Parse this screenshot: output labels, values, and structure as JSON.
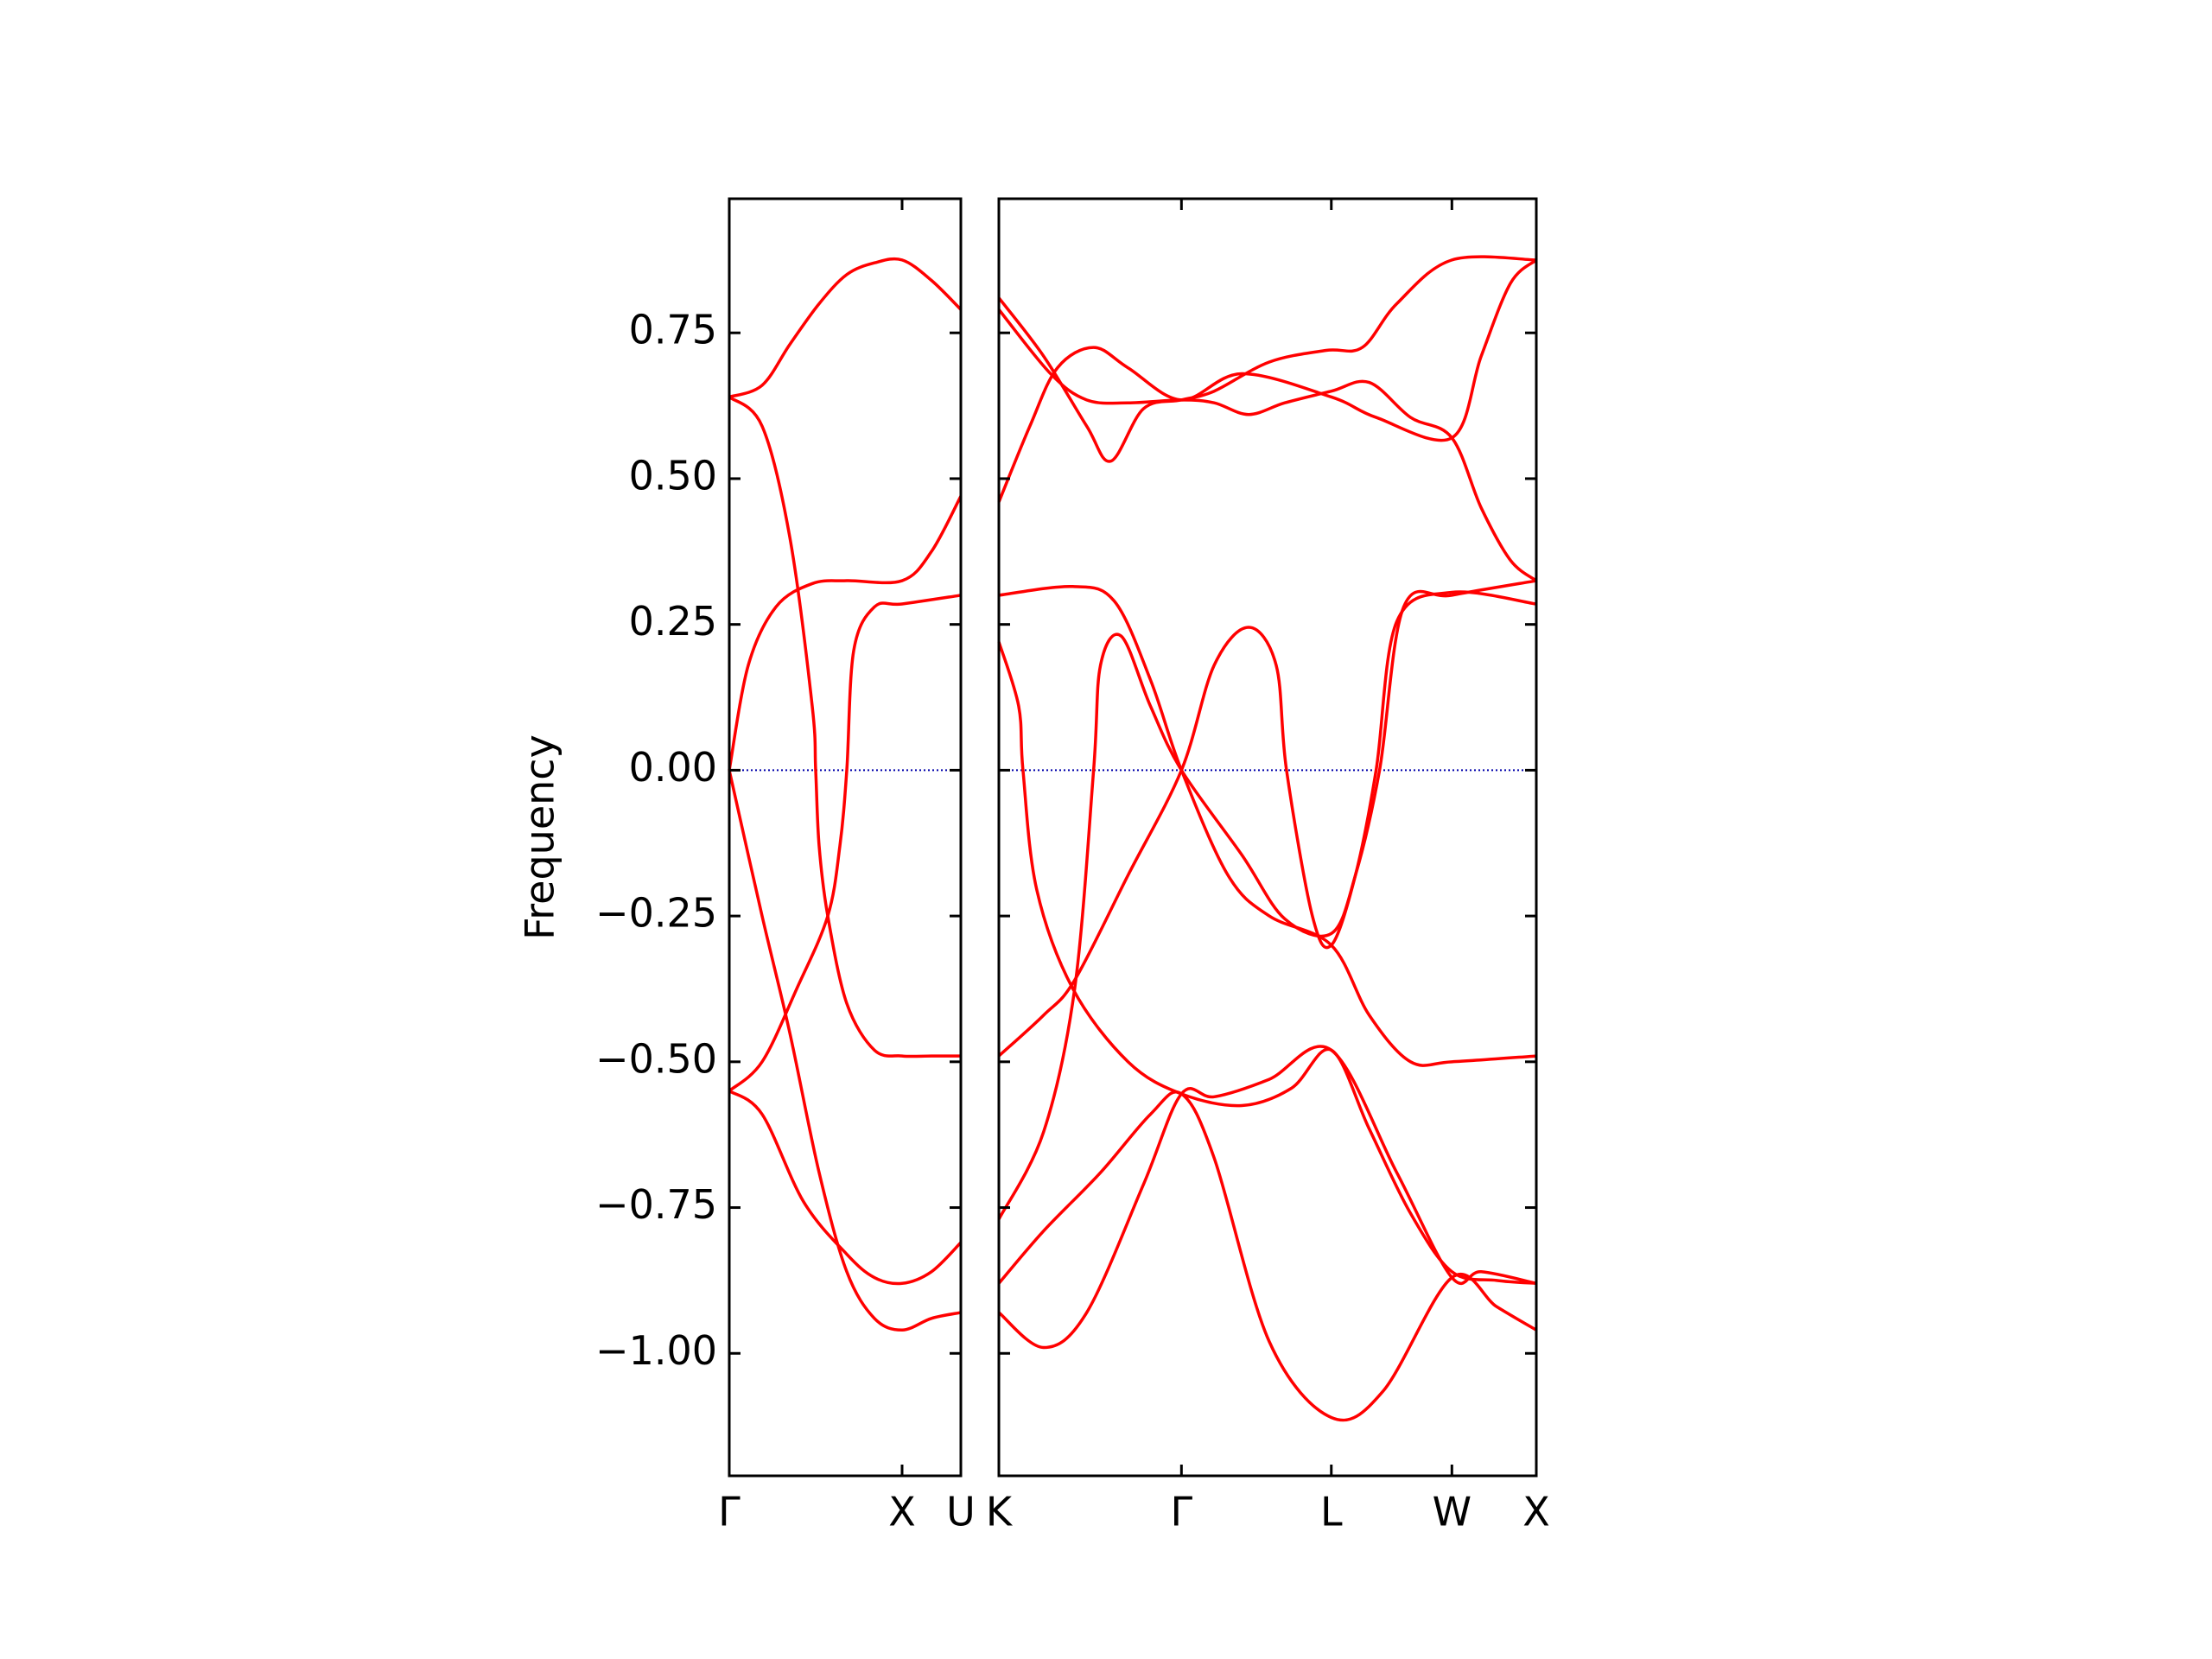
{
  "chart_data": [
    {
      "type": "line",
      "ylabel": "Frequency",
      "xlim": [
        0,
        1.34
      ],
      "ylim": [
        -1.21,
        0.98
      ],
      "xticks": [
        {
          "value": 0,
          "label": "Γ"
        },
        {
          "value": 1,
          "label": "X"
        },
        {
          "value": 1.34,
          "label": "U"
        }
      ],
      "yticks": [
        {
          "value": -1,
          "label": "−1.00"
        },
        {
          "value": -0.75,
          "label": "−0.75"
        },
        {
          "value": -0.5,
          "label": "−0.50"
        },
        {
          "value": -0.25,
          "label": "−0.25"
        },
        {
          "value": 0,
          "label": "0.00"
        },
        0.25,
        {
          "value": 0.5,
          "label": "0.50"
        },
        0.75
      ],
      "ytick_labels": true,
      "reference_line": {
        "value": 0,
        "color": "#0000aa"
      },
      "series": [
        {
          "color": "#ff0000",
          "x": [
            0,
            0.19,
            0.35,
            0.52,
            0.68,
            0.84,
            1,
            1.17,
            1.34
          ],
          "values": [
            0.64,
            0.66,
            0.73,
            0.8,
            0.85,
            0.87,
            0.875,
            0.84,
            0.79
          ]
        },
        {
          "color": "#ff0000",
          "x": [
            0,
            0.19,
            0.35,
            0.48,
            0.5,
            0.52,
            0.57,
            0.68,
            0.84,
            1,
            1.17,
            1.34
          ],
          "values": [
            0.64,
            0.59,
            0.4,
            0.11,
            0,
            -0.13,
            -0.25,
            -0.4,
            -0.48,
            -0.49,
            -0.49,
            -0.49
          ]
        },
        {
          "color": "#ff0000",
          "x": [
            0,
            0.11,
            0.27,
            0.48,
            0.68,
            1,
            1.17,
            1.34
          ],
          "values": [
            0,
            0.18,
            0.28,
            0.32,
            0.325,
            0.325,
            0.375,
            0.47
          ]
        },
        {
          "color": "#ff0000",
          "x": [
            0,
            0.19,
            0.35,
            0.52,
            0.68,
            0.84,
            1,
            1.17,
            1.34
          ],
          "values": [
            0,
            -0.25,
            -0.45,
            -0.69,
            -0.86,
            -0.94,
            -0.96,
            -0.94,
            -0.93
          ]
        },
        {
          "color": "#ff0000",
          "x": [
            0,
            0.19,
            0.39,
            0.57,
            0.64,
            0.68,
            0.72,
            0.84,
            1,
            1.34
          ],
          "values": [
            -0.55,
            -0.5,
            -0.375,
            -0.25,
            -0.13,
            0,
            0.205,
            0.28,
            0.285,
            0.3
          ]
        },
        {
          "color": "#ff0000",
          "x": [
            0,
            0.19,
            0.43,
            0.68,
            0.84,
            1,
            1.17,
            1.34
          ],
          "values": [
            -0.55,
            -0.59,
            -0.74,
            -0.83,
            -0.87,
            -0.88,
            -0.86,
            -0.81
          ]
        }
      ]
    },
    {
      "type": "line",
      "xlim": [
        0,
        3.12
      ],
      "ylim": [
        -1.21,
        0.98
      ],
      "xticks": [
        {
          "value": 0,
          "label": "K"
        },
        {
          "value": 1.06,
          "label": "Γ"
        },
        {
          "value": 1.93,
          "label": "L"
        },
        {
          "value": 2.63,
          "label": "W"
        },
        {
          "value": 3.12,
          "label": "X"
        }
      ],
      "yticks": [
        -1,
        -0.75,
        -0.5,
        -0.25,
        0,
        0.25,
        0.5,
        0.75
      ],
      "ytick_labels": false,
      "reference_line": {
        "value": 0,
        "color": "#0000aa"
      },
      "series": [
        {
          "color": "#ff0000",
          "x": [
            0,
            0.26,
            0.51,
            0.65,
            0.84,
            1.06,
            1.25,
            1.57,
            1.9,
            2.11,
            2.31,
            2.63,
            3.12
          ],
          "values": [
            0.81,
            0.71,
            0.59,
            0.53,
            0.62,
            0.635,
            0.65,
            0.7,
            0.72,
            0.725,
            0.8,
            0.875,
            0.875
          ]
        },
        {
          "color": "#ff0000",
          "x": [
            0,
            0.3,
            0.51,
            0.75,
            1.06,
            1.25,
            1.45,
            1.66,
            1.93,
            2.15,
            2.39,
            2.63,
            2.8,
            2.97,
            3.12
          ],
          "values": [
            0.79,
            0.68,
            0.635,
            0.63,
            0.635,
            0.63,
            0.61,
            0.63,
            0.65,
            0.665,
            0.605,
            0.57,
            0.45,
            0.36,
            0.325
          ]
        },
        {
          "color": "#ff0000",
          "x": [
            0,
            0.18,
            0.34,
            0.55,
            0.75,
            1.06,
            1.41,
            1.93,
            2.19,
            2.63,
            2.8,
            2.97,
            3.12
          ],
          "values": [
            0.46,
            0.59,
            0.69,
            0.725,
            0.69,
            0.635,
            0.68,
            0.64,
            0.605,
            0.57,
            0.71,
            0.835,
            0.875
          ]
        },
        {
          "color": "#ff0000",
          "x": [
            0,
            0.43,
            0.67,
            0.88,
            1.06,
            1.33,
            1.57,
            1.93,
            2.15,
            2.39,
            2.63,
            3.12
          ],
          "values": [
            0.3,
            0.315,
            0.29,
            0.155,
            0,
            -0.18,
            -0.25,
            -0.3,
            -0.42,
            -0.5,
            -0.5,
            -0.49
          ]
        },
        {
          "color": "#ff0000",
          "x": [
            0,
            0.115,
            0.14,
            0.22,
            0.43,
            0.75,
            1.06,
            1.41,
            1.7,
            1.93,
            2.15,
            2.39,
            2.63,
            2.89,
            3.12
          ],
          "values": [
            0.22,
            0.11,
            0,
            -0.205,
            -0.375,
            -0.5,
            -0.555,
            -0.575,
            -0.545,
            -0.48,
            -0.615,
            -0.76,
            -0.86,
            -0.875,
            -0.88
          ]
        },
        {
          "color": "#ff0000",
          "x": [
            0,
            0.26,
            0.44,
            0.75,
            1.06,
            1.25,
            1.45,
            1.61,
            1.67,
            1.82,
            1.93,
            2.07,
            2.19,
            2.31,
            2.63,
            3.12
          ],
          "values": [
            -0.49,
            -0.42,
            -0.36,
            -0.18,
            0,
            0.18,
            0.245,
            0.18,
            0,
            -0.25,
            -0.3,
            -0.18,
            0,
            0.255,
            0.305,
            0.285
          ]
        },
        {
          "color": "#ff0000",
          "x": [
            0,
            0.26,
            0.44,
            0.55,
            0.59,
            0.71,
            0.88,
            1.06,
            1.41,
            1.66,
            1.93,
            2.07,
            2.21,
            2.35,
            2.63,
            3.12
          ],
          "values": [
            -0.77,
            -0.62,
            -0.375,
            0,
            0.18,
            0.23,
            0.11,
            0,
            -0.145,
            -0.255,
            -0.28,
            -0.18,
            0,
            0.28,
            0.3,
            0.325
          ]
        },
        {
          "color": "#ff0000",
          "x": [
            0,
            0.26,
            0.59,
            0.88,
            1.06,
            1.25,
            1.57,
            1.93,
            2.23,
            2.63,
            2.89,
            3.12
          ],
          "values": [
            -0.88,
            -0.79,
            -0.69,
            -0.59,
            -0.555,
            -0.665,
            -0.98,
            -1.11,
            -1.065,
            -0.87,
            -0.92,
            -0.96
          ]
        },
        {
          "color": "#ff0000",
          "x": [
            0,
            0.26,
            0.51,
            0.84,
            1.06,
            1.25,
            1.57,
            1.93,
            2.31,
            2.63,
            2.8,
            3.12
          ],
          "values": [
            -0.93,
            -0.99,
            -0.93,
            -0.71,
            -0.555,
            -0.56,
            -0.53,
            -0.48,
            -0.69,
            -0.87,
            -0.86,
            -0.88
          ]
        }
      ]
    }
  ]
}
